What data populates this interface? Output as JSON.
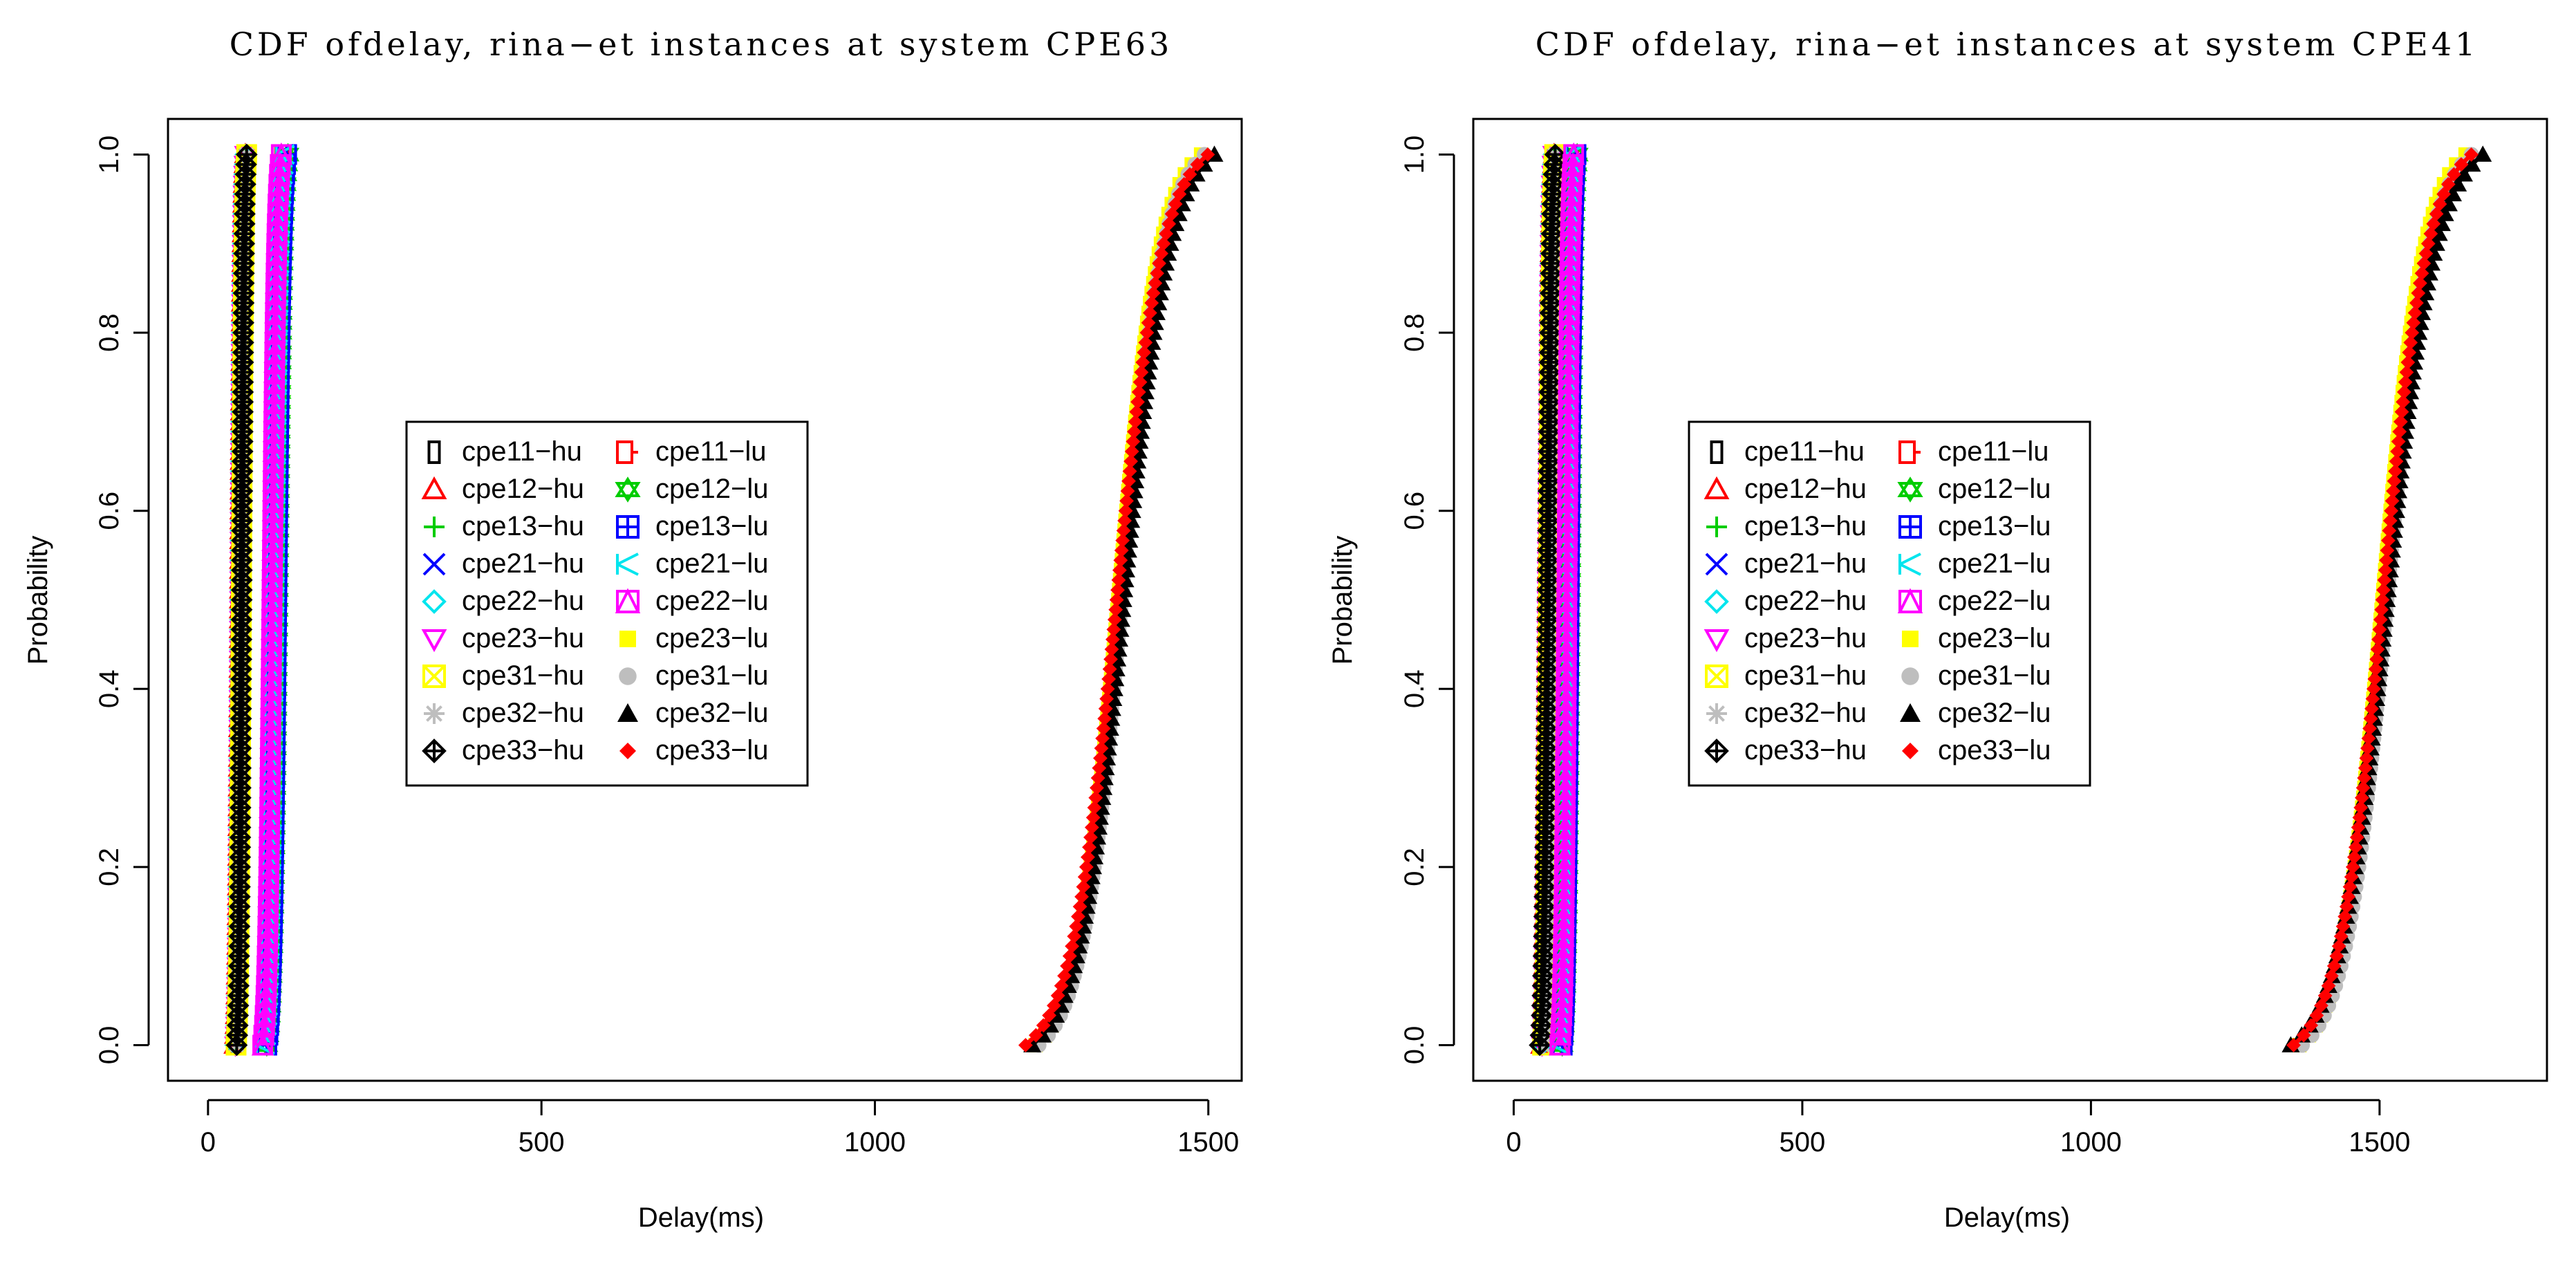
{
  "chart_data": [
    {
      "type": "line",
      "title": "CDF ofdelay, rina−et instances at system  CPE63",
      "xlabel": "Delay(ms)",
      "ylabel": "Probability",
      "xlim": [
        -60,
        1550
      ],
      "ylim": [
        -0.04,
        1.04
      ],
      "xticks": [
        0,
        500,
        1000,
        1500
      ],
      "yticks": [
        0.0,
        0.2,
        0.4,
        0.6,
        0.8,
        1.0
      ],
      "xtick_labels": [
        "0",
        "500",
        "1000",
        "1500"
      ],
      "ytick_labels": [
        "0.0",
        "0.2",
        "0.4",
        "0.6",
        "0.8",
        "1.0"
      ],
      "legend_position": "center-left",
      "series": [
        {
          "name": "cpe11−hu",
          "color": "#000000",
          "marker": "rect-open",
          "lo": 40,
          "hi": 55
        },
        {
          "name": "cpe12−hu",
          "color": "#ff0000",
          "marker": "triangle-up-open",
          "lo": 40,
          "hi": 56
        },
        {
          "name": "cpe13−hu",
          "color": "#00cd00",
          "marker": "plus",
          "lo": 42,
          "hi": 57
        },
        {
          "name": "cpe21−hu",
          "color": "#0000ff",
          "marker": "x",
          "lo": 42,
          "hi": 57
        },
        {
          "name": "cpe22−hu",
          "color": "#00e5ee",
          "marker": "diamond-open",
          "lo": 41,
          "hi": 56
        },
        {
          "name": "cpe23−hu",
          "color": "#ff00ff",
          "marker": "triangle-down-open",
          "lo": 41,
          "hi": 56
        },
        {
          "name": "cpe31−hu",
          "color": "#ffff00",
          "marker": "square-x",
          "lo": 42,
          "hi": 58
        },
        {
          "name": "cpe32−hu",
          "color": "#bebebe",
          "marker": "asterisk",
          "lo": 43,
          "hi": 58
        },
        {
          "name": "cpe33−hu",
          "color": "#000000",
          "marker": "diamond-plus",
          "lo": 43,
          "hi": 58
        },
        {
          "name": "cpe11−lu",
          "color": "#ff0000",
          "marker": "square-dash",
          "lo": 85,
          "hi": 115
        },
        {
          "name": "cpe12−lu",
          "color": "#00cd00",
          "marker": "star-of-david",
          "lo": 88,
          "hi": 120
        },
        {
          "name": "cpe13−lu",
          "color": "#0000ff",
          "marker": "square-plus",
          "lo": 88,
          "hi": 118
        },
        {
          "name": "cpe21−lu",
          "color": "#00e5ee",
          "marker": "square-k",
          "lo": 86,
          "hi": 116
        },
        {
          "name": "cpe22−lu",
          "color": "#ff00ff",
          "marker": "square-triangle",
          "lo": 82,
          "hi": 110
        },
        {
          "name": "cpe23−lu",
          "color": "#ffff00",
          "marker": "square-filled",
          "lo": 1240,
          "hi": 1490
        },
        {
          "name": "cpe31−lu",
          "color": "#bebebe",
          "marker": "circle-filled",
          "lo": 1245,
          "hi": 1495
        },
        {
          "name": "cpe32−lu",
          "color": "#000000",
          "marker": "triangle-filled",
          "lo": 1235,
          "hi": 1510
        },
        {
          "name": "cpe33−lu",
          "color": "#ff0000",
          "marker": "diamond-filled",
          "lo": 1225,
          "hi": 1500
        }
      ]
    },
    {
      "type": "line",
      "title": "CDF ofdelay, rina−et instances at system  CPE41",
      "xlabel": "Delay(ms)",
      "ylabel": "Probability",
      "xlim": [
        -70,
        1790
      ],
      "ylim": [
        -0.04,
        1.04
      ],
      "xticks": [
        0,
        500,
        1000,
        1500
      ],
      "yticks": [
        0.0,
        0.2,
        0.4,
        0.6,
        0.8,
        1.0
      ],
      "xtick_labels": [
        "0",
        "500",
        "1000",
        "1500"
      ],
      "ytick_labels": [
        "0.0",
        "0.2",
        "0.4",
        "0.6",
        "0.8",
        "1.0"
      ],
      "legend_position": "center-left",
      "series": [
        {
          "name": "cpe11−hu",
          "color": "#000000",
          "marker": "rect-open",
          "lo": 48,
          "hi": 68
        },
        {
          "name": "cpe12−hu",
          "color": "#ff0000",
          "marker": "triangle-up-open",
          "lo": 48,
          "hi": 70
        },
        {
          "name": "cpe13−hu",
          "color": "#00cd00",
          "marker": "plus",
          "lo": 50,
          "hi": 70
        },
        {
          "name": "cpe21−hu",
          "color": "#0000ff",
          "marker": "x",
          "lo": 50,
          "hi": 70
        },
        {
          "name": "cpe22−hu",
          "color": "#00e5ee",
          "marker": "diamond-open",
          "lo": 49,
          "hi": 69
        },
        {
          "name": "cpe23−hu",
          "color": "#ff00ff",
          "marker": "triangle-down-open",
          "lo": 49,
          "hi": 69
        },
        {
          "name": "cpe31−hu",
          "color": "#ffff00",
          "marker": "square-x",
          "lo": 50,
          "hi": 71
        },
        {
          "name": "cpe32−hu",
          "color": "#bebebe",
          "marker": "asterisk",
          "lo": 51,
          "hi": 72
        },
        {
          "name": "cpe33−hu",
          "color": "#000000",
          "marker": "diamond-plus",
          "lo": 45,
          "hi": 72
        },
        {
          "name": "cpe11−lu",
          "color": "#ff0000",
          "marker": "square-dash",
          "lo": 82,
          "hi": 105
        },
        {
          "name": "cpe12−lu",
          "color": "#00cd00",
          "marker": "star-of-david",
          "lo": 84,
          "hi": 110
        },
        {
          "name": "cpe13−lu",
          "color": "#0000ff",
          "marker": "square-plus",
          "lo": 84,
          "hi": 108
        },
        {
          "name": "cpe21−lu",
          "color": "#00e5ee",
          "marker": "square-k",
          "lo": 82,
          "hi": 106
        },
        {
          "name": "cpe22−lu",
          "color": "#ff00ff",
          "marker": "square-triangle",
          "lo": 80,
          "hi": 104
        },
        {
          "name": "cpe23−lu",
          "color": "#ffff00",
          "marker": "square-filled",
          "lo": 1360,
          "hi": 1650
        },
        {
          "name": "cpe31−lu",
          "color": "#bebebe",
          "marker": "circle-filled",
          "lo": 1365,
          "hi": 1660
        },
        {
          "name": "cpe32−lu",
          "color": "#000000",
          "marker": "triangle-filled",
          "lo": 1345,
          "hi": 1680
        },
        {
          "name": "cpe33−lu",
          "color": "#ff0000",
          "marker": "diamond-filled",
          "lo": 1350,
          "hi": 1660
        }
      ]
    }
  ]
}
